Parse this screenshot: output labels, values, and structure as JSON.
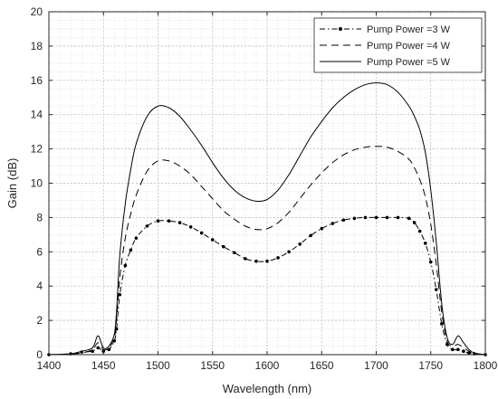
{
  "chart_data": {
    "type": "line",
    "xlabel": "Wavelength (nm)",
    "ylabel": "Gain (dB)",
    "xlim": [
      1400,
      1800
    ],
    "ylim": [
      0,
      20
    ],
    "xticks": [
      1400,
      1450,
      1500,
      1550,
      1600,
      1650,
      1700,
      1750,
      1800
    ],
    "yticks": [
      0,
      2,
      4,
      6,
      8,
      10,
      12,
      14,
      16,
      18,
      20
    ],
    "xtick_labels": [
      "1400",
      "1450",
      "1500",
      "1550",
      "1600",
      "1650",
      "1700",
      "1750",
      "1800"
    ],
    "ytick_labels": [
      "0",
      "2",
      "4",
      "6",
      "8",
      "10",
      "12",
      "14",
      "16",
      "18",
      "20"
    ],
    "grid": true,
    "minor_grid": true,
    "legend": "top-right",
    "series": [
      {
        "name": "Pump Power =3 W",
        "style": "dash-dot with dot markers",
        "color": "#000000",
        "x": [
          1400,
          1420,
          1430,
          1440,
          1445,
          1450,
          1455,
          1460,
          1462,
          1465,
          1470,
          1475,
          1480,
          1490,
          1500,
          1510,
          1520,
          1530,
          1540,
          1550,
          1560,
          1570,
          1580,
          1590,
          1600,
          1610,
          1620,
          1630,
          1640,
          1650,
          1660,
          1670,
          1680,
          1690,
          1700,
          1710,
          1720,
          1730,
          1735,
          1740,
          1745,
          1750,
          1755,
          1760,
          1765,
          1770,
          1775,
          1780,
          1785,
          1790,
          1800
        ],
        "y": [
          0,
          0.05,
          0.15,
          0.2,
          0.4,
          0.2,
          0.3,
          0.8,
          1.5,
          3.5,
          5.2,
          6.1,
          6.8,
          7.5,
          7.8,
          7.8,
          7.7,
          7.45,
          7.1,
          6.7,
          6.3,
          5.95,
          5.6,
          5.45,
          5.45,
          5.65,
          6.0,
          6.45,
          6.95,
          7.35,
          7.65,
          7.85,
          7.95,
          8.0,
          8.0,
          8.0,
          8.0,
          7.95,
          7.7,
          7.2,
          6.5,
          5.4,
          3.8,
          1.8,
          0.6,
          0.3,
          0.3,
          0.2,
          0.1,
          0.05,
          0
        ]
      },
      {
        "name": "Pump Power =4 W",
        "style": "dashed",
        "color": "#000000",
        "x": [
          1400,
          1420,
          1430,
          1440,
          1445,
          1450,
          1455,
          1460,
          1462,
          1465,
          1470,
          1475,
          1480,
          1490,
          1500,
          1510,
          1520,
          1530,
          1540,
          1550,
          1560,
          1570,
          1580,
          1590,
          1600,
          1610,
          1620,
          1630,
          1640,
          1650,
          1660,
          1670,
          1680,
          1690,
          1700,
          1710,
          1720,
          1730,
          1735,
          1740,
          1745,
          1750,
          1755,
          1760,
          1765,
          1770,
          1775,
          1780,
          1785,
          1790,
          1800
        ],
        "y": [
          0,
          0.05,
          0.1,
          0.3,
          0.7,
          0.3,
          0.4,
          1.0,
          2.0,
          4.5,
          6.8,
          8.2,
          9.3,
          10.7,
          11.3,
          11.3,
          11.0,
          10.5,
          9.8,
          9.1,
          8.4,
          7.9,
          7.5,
          7.3,
          7.35,
          7.7,
          8.3,
          9.1,
          9.9,
          10.6,
          11.2,
          11.65,
          11.95,
          12.1,
          12.15,
          12.1,
          11.85,
          11.4,
          10.9,
          10.2,
          9.2,
          7.6,
          5.3,
          2.5,
          0.8,
          0.5,
          0.6,
          0.4,
          0.2,
          0.05,
          0
        ]
      },
      {
        "name": "Pump Power =5 W",
        "style": "solid",
        "color": "#000000",
        "x": [
          1400,
          1420,
          1430,
          1440,
          1445,
          1450,
          1455,
          1460,
          1462,
          1465,
          1470,
          1475,
          1480,
          1490,
          1500,
          1510,
          1520,
          1530,
          1540,
          1550,
          1560,
          1570,
          1580,
          1590,
          1600,
          1610,
          1620,
          1630,
          1640,
          1650,
          1660,
          1670,
          1680,
          1690,
          1700,
          1710,
          1720,
          1730,
          1735,
          1740,
          1745,
          1750,
          1755,
          1760,
          1765,
          1770,
          1775,
          1780,
          1785,
          1790,
          1800
        ],
        "y": [
          0,
          0.05,
          0.2,
          0.4,
          1.1,
          0.4,
          0.5,
          1.2,
          2.5,
          5.8,
          8.8,
          10.8,
          12.3,
          13.9,
          14.5,
          14.4,
          13.9,
          13.1,
          12.2,
          11.2,
          10.3,
          9.6,
          9.15,
          8.95,
          9.05,
          9.6,
          10.5,
          11.6,
          12.7,
          13.6,
          14.4,
          15.0,
          15.45,
          15.75,
          15.85,
          15.75,
          15.3,
          14.5,
          13.9,
          13.1,
          11.8,
          9.6,
          6.6,
          3.0,
          1.0,
          0.6,
          1.1,
          0.7,
          0.3,
          0.1,
          0
        ]
      }
    ]
  }
}
